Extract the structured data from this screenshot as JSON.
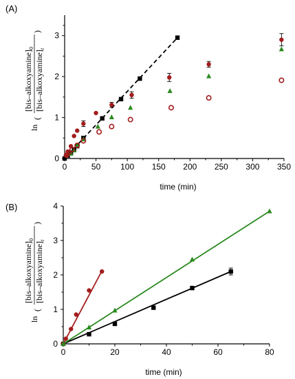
{
  "colors": {
    "black": "#000000",
    "red": "#a31d1d",
    "green": "#2a8a1e"
  },
  "chart_data": [
    {
      "panel_label": "(A)",
      "type": "scatter",
      "xlabel": "time (min)",
      "ylabel_lines": [
        "[bis–alkoxyamine]",
        "[bis–alkoxyamine]"
      ],
      "ylabel_subs": [
        "0",
        "t"
      ],
      "ylabel_prefix": "ln",
      "xlim": [
        0,
        350
      ],
      "ylim": [
        0,
        3.5
      ],
      "xticks": [
        "0",
        "50",
        "100",
        "150",
        "200",
        "250",
        "300",
        "350"
      ],
      "yticks": [
        "0",
        "1",
        "2",
        "3"
      ],
      "series": [
        {
          "marker": "square",
          "color": "black",
          "points": [
            [
              0,
              0
            ],
            [
              5,
              0.07
            ],
            [
              10,
              0.14
            ],
            [
              15,
              0.22
            ],
            [
              20,
              0.3
            ],
            [
              30,
              0.5
            ],
            [
              60,
              0.98
            ],
            [
              90,
              1.45
            ],
            [
              120,
              1.95
            ],
            [
              180,
              2.95
            ]
          ],
          "fit": {
            "style": "dashed",
            "from": [
              0,
              0
            ],
            "to": [
              180,
              2.95
            ]
          }
        },
        {
          "marker": "circle",
          "color": "red",
          "points": [
            [
              2,
              0.08
            ],
            [
              5,
              0.17
            ],
            [
              10,
              0.3
            ],
            [
              15,
              0.55
            ],
            [
              20,
              0.68
            ],
            [
              30,
              0.85
            ],
            [
              50,
              1.11
            ],
            [
              75,
              1.31
            ],
            [
              107,
              1.55
            ],
            [
              167,
              1.98
            ],
            [
              230,
              2.3
            ],
            [
              346,
              2.9
            ]
          ],
          "errors": [
            0,
            0,
            0,
            0,
            0,
            0.07,
            0,
            0.06,
            0.08,
            0.1,
            0.07,
            0.15
          ]
        },
        {
          "marker": "triangle",
          "color": "green",
          "points": [
            [
              10,
              0.12
            ],
            [
              15,
              0.2
            ],
            [
              20,
              0.32
            ],
            [
              30,
              0.47
            ],
            [
              53,
              0.78
            ],
            [
              75,
              1.01
            ],
            [
              105,
              1.24
            ],
            [
              168,
              1.65
            ],
            [
              230,
              2.01
            ],
            [
              346,
              2.67
            ]
          ]
        },
        {
          "marker": "open-circle",
          "color": "red",
          "points": [
            [
              3,
              0.08
            ],
            [
              7,
              0.15
            ],
            [
              12,
              0.22
            ],
            [
              20,
              0.32
            ],
            [
              30,
              0.43
            ],
            [
              55,
              0.65
            ],
            [
              75,
              0.78
            ],
            [
              105,
              0.95
            ],
            [
              170,
              1.24
            ],
            [
              230,
              1.48
            ],
            [
              346,
              1.91
            ]
          ]
        }
      ]
    },
    {
      "panel_label": "(B)",
      "type": "scatter",
      "xlabel": "time (min)",
      "ylabel_lines": [
        "[bis–alkoxyamine]",
        "[bis–alkoxyamine]"
      ],
      "ylabel_subs": [
        "0",
        "t"
      ],
      "ylabel_prefix": "ln",
      "xlim": [
        0,
        80
      ],
      "ylim": [
        0,
        4
      ],
      "xticks": [
        "0",
        "20",
        "40",
        "60",
        "80"
      ],
      "yticks": [
        "0",
        "1",
        "2",
        "3",
        "4"
      ],
      "series": [
        {
          "marker": "square",
          "color": "black",
          "points": [
            [
              0,
              0
            ],
            [
              10,
              0.28
            ],
            [
              20,
              0.58
            ],
            [
              35,
              1.05
            ],
            [
              50,
              1.62
            ],
            [
              65,
              2.1
            ]
          ],
          "errors": [
            0,
            0,
            0,
            0,
            0,
            0.1
          ],
          "fit": {
            "style": "solid",
            "from": [
              0,
              0
            ],
            "to": [
              65,
              2.1
            ]
          }
        },
        {
          "marker": "circle",
          "color": "red",
          "points": [
            [
              0,
              0
            ],
            [
              1,
              0.15
            ],
            [
              3,
              0.43
            ],
            [
              5,
              0.85
            ],
            [
              10,
              1.55
            ],
            [
              15,
              2.1
            ]
          ],
          "fit": {
            "style": "solid",
            "from": [
              0,
              0
            ],
            "to": [
              15,
              2.12
            ]
          }
        },
        {
          "marker": "triangle",
          "color": "green",
          "points": [
            [
              0,
              0
            ],
            [
              10,
              0.48
            ],
            [
              20,
              0.97
            ],
            [
              50,
              2.45
            ],
            [
              80,
              3.85
            ]
          ],
          "fit": {
            "style": "solid",
            "from": [
              0,
              0
            ],
            "to": [
              80,
              3.85
            ]
          }
        }
      ]
    }
  ]
}
